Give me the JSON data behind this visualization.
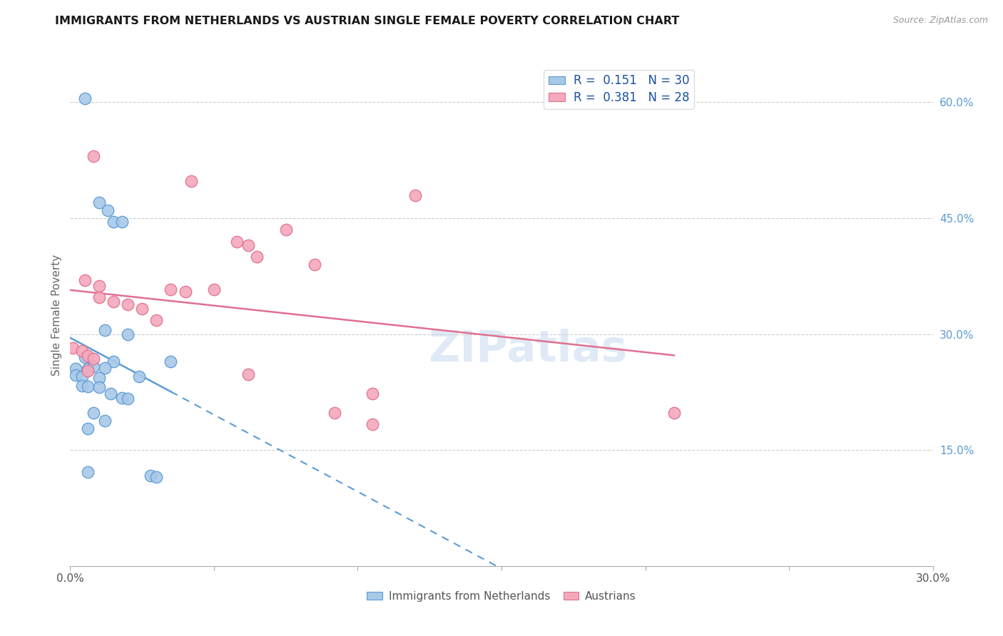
{
  "title": "IMMIGRANTS FROM NETHERLANDS VS AUSTRIAN SINGLE FEMALE POVERTY CORRELATION CHART",
  "source": "Source: ZipAtlas.com",
  "ylabel": "Single Female Poverty",
  "xlim": [
    0.0,
    0.3
  ],
  "ylim": [
    0.0,
    0.65
  ],
  "x_ticks": [
    0.0,
    0.05,
    0.1,
    0.15,
    0.2,
    0.25,
    0.3
  ],
  "x_tick_labels": [
    "0.0%",
    "",
    "",
    "",
    "",
    "",
    "30.0%"
  ],
  "y_ticks_right": [
    0.15,
    0.3,
    0.45,
    0.6
  ],
  "y_tick_labels_right": [
    "15.0%",
    "30.0%",
    "45.0%",
    "60.0%"
  ],
  "legend_labels": [
    "Immigrants from Netherlands",
    "Austrians"
  ],
  "R_blue": 0.151,
  "N_blue": 30,
  "R_pink": 0.381,
  "N_pink": 28,
  "blue_color": "#a8c8e8",
  "pink_color": "#f4a8bc",
  "blue_line_color": "#5b9bd5",
  "pink_line_color": "#e07090",
  "watermark": "ZIPatlas",
  "blue_points": [
    [
      0.005,
      0.605
    ],
    [
      0.01,
      0.47
    ],
    [
      0.013,
      0.46
    ],
    [
      0.015,
      0.445
    ],
    [
      0.018,
      0.445
    ],
    [
      0.012,
      0.305
    ],
    [
      0.02,
      0.3
    ],
    [
      0.005,
      0.27
    ],
    [
      0.015,
      0.265
    ],
    [
      0.035,
      0.265
    ],
    [
      0.002,
      0.255
    ],
    [
      0.006,
      0.255
    ],
    [
      0.008,
      0.258
    ],
    [
      0.012,
      0.256
    ],
    [
      0.002,
      0.247
    ],
    [
      0.004,
      0.245
    ],
    [
      0.01,
      0.243
    ],
    [
      0.024,
      0.245
    ],
    [
      0.004,
      0.233
    ],
    [
      0.006,
      0.232
    ],
    [
      0.01,
      0.231
    ],
    [
      0.014,
      0.223
    ],
    [
      0.018,
      0.218
    ],
    [
      0.02,
      0.217
    ],
    [
      0.008,
      0.198
    ],
    [
      0.012,
      0.188
    ],
    [
      0.006,
      0.178
    ],
    [
      0.006,
      0.122
    ],
    [
      0.028,
      0.117
    ],
    [
      0.03,
      0.115
    ]
  ],
  "pink_points": [
    [
      0.008,
      0.53
    ],
    [
      0.042,
      0.498
    ],
    [
      0.12,
      0.48
    ],
    [
      0.075,
      0.435
    ],
    [
      0.085,
      0.39
    ],
    [
      0.058,
      0.42
    ],
    [
      0.062,
      0.415
    ],
    [
      0.065,
      0.4
    ],
    [
      0.05,
      0.358
    ],
    [
      0.005,
      0.37
    ],
    [
      0.01,
      0.362
    ],
    [
      0.035,
      0.358
    ],
    [
      0.04,
      0.355
    ],
    [
      0.01,
      0.348
    ],
    [
      0.015,
      0.342
    ],
    [
      0.02,
      0.338
    ],
    [
      0.025,
      0.333
    ],
    [
      0.03,
      0.318
    ],
    [
      0.001,
      0.282
    ],
    [
      0.004,
      0.278
    ],
    [
      0.006,
      0.272
    ],
    [
      0.008,
      0.268
    ],
    [
      0.006,
      0.253
    ],
    [
      0.062,
      0.248
    ],
    [
      0.105,
      0.223
    ],
    [
      0.092,
      0.198
    ],
    [
      0.105,
      0.183
    ],
    [
      0.21,
      0.198
    ]
  ]
}
